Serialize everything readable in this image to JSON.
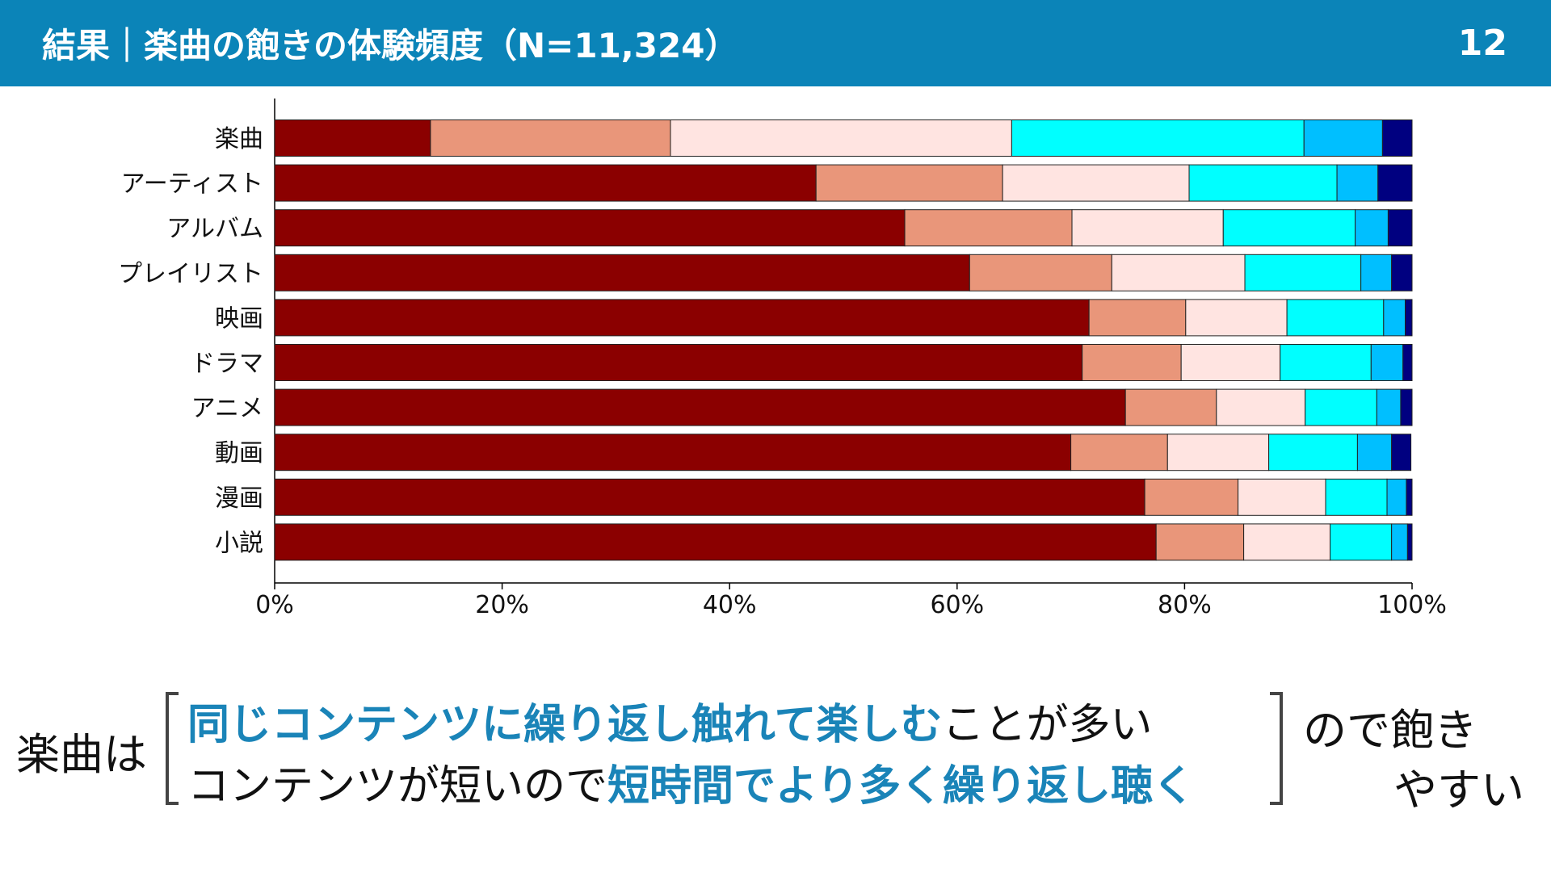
{
  "header": {
    "title": "結果｜楽曲の飽きの体験頻度（N=11,324）",
    "page_number": "12"
  },
  "colors": {
    "header_bg": "#0b84b8",
    "emphasis": "#1a84b8",
    "segments": [
      "#8b0000",
      "#e9967a",
      "#ffe4e1",
      "#00ffff",
      "#00bfff",
      "#000080"
    ]
  },
  "chart_data": {
    "type": "bar",
    "orientation": "horizontal",
    "stacked": true,
    "normalized": true,
    "categories": [
      "楽曲",
      "アーティスト",
      "アルバム",
      "プレイリスト",
      "映画",
      "ドラマ",
      "アニメ",
      "動画",
      "漫画",
      "小説"
    ],
    "series": [
      {
        "name": "segment-1",
        "color": "#8b0000",
        "values": [
          13.7,
          47.6,
          55.4,
          61.1,
          71.6,
          71.0,
          74.8,
          70.0,
          76.5,
          77.5
        ]
      },
      {
        "name": "segment-2",
        "color": "#e9967a",
        "values": [
          21.1,
          16.4,
          14.7,
          12.5,
          8.5,
          8.7,
          8.0,
          8.5,
          8.2,
          7.7
        ]
      },
      {
        "name": "segment-3",
        "color": "#ffe4e1",
        "values": [
          30.0,
          16.4,
          13.3,
          11.7,
          8.9,
          8.7,
          7.8,
          8.9,
          7.7,
          7.6
        ]
      },
      {
        "name": "segment-4",
        "color": "#00ffff",
        "values": [
          25.7,
          13.0,
          11.6,
          10.2,
          8.5,
          8.0,
          6.3,
          7.8,
          5.4,
          5.4
        ]
      },
      {
        "name": "segment-5",
        "color": "#00bfff",
        "values": [
          6.9,
          3.6,
          2.9,
          2.7,
          1.9,
          2.8,
          2.1,
          3.0,
          1.7,
          1.4
        ]
      },
      {
        "name": "segment-6",
        "color": "#000080",
        "values": [
          2.6,
          3.0,
          2.1,
          1.8,
          0.6,
          0.8,
          1.0,
          1.7,
          0.5,
          0.4
        ]
      }
    ],
    "xlim": [
      0,
      100
    ],
    "xticks": [
      "0%",
      "20%",
      "40%",
      "60%",
      "80%",
      "100%"
    ],
    "title": "",
    "xlabel": "",
    "ylabel": "",
    "grid": false
  },
  "summary": {
    "lead": "楽曲は",
    "line1_emphasis": "同じコンテンツに繰り返し触れて楽しむ",
    "line1_rest": "ことが多い",
    "line2_prefix": "コンテンツが短いので",
    "line2_emphasis": "短時間でより多く繰り返し聴く",
    "tail_line1": "ので飽き",
    "tail_line2": "やすい"
  }
}
